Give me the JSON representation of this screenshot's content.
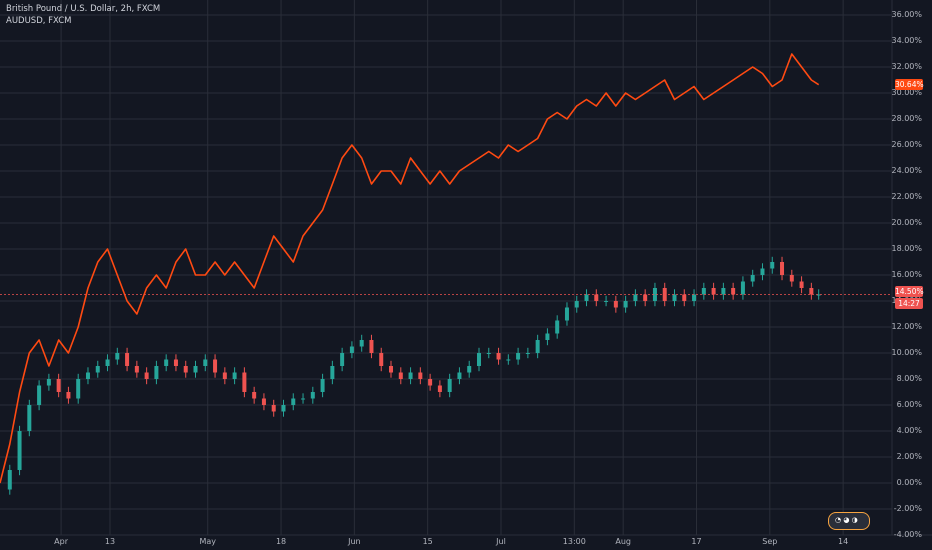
{
  "legend": {
    "line1": "British Pound / U.S. Dollar, 2h, FXCM",
    "line2": "AUDUSD, FXCM"
  },
  "price_tags": {
    "gbpusd": "30.64%",
    "audusd": "14.50%",
    "countdown": "14:27"
  },
  "colors": {
    "background": "#131722",
    "grid": "#2a2e39",
    "gbpusd_line": "#ff4a12",
    "audusd_up": "#26a69a",
    "audusd_down": "#ef5350",
    "axis_text": "#b2b5be"
  },
  "chart_data": {
    "type": "line",
    "y_unit": "percent change",
    "ylim": [
      -4,
      37
    ],
    "ytick_labels": [
      "36.00%",
      "34.00%",
      "32.00%",
      "30.00%",
      "28.00%",
      "26.00%",
      "24.00%",
      "22.00%",
      "20.00%",
      "18.00%",
      "16.00%",
      "14.00%",
      "12.00%",
      "10.00%",
      "8.00%",
      "6.00%",
      "4.00%",
      "2.00%",
      "0.00%",
      "-2.00%",
      "-4.00%"
    ],
    "ytick_values": [
      36,
      34,
      32,
      30,
      28,
      26,
      24,
      22,
      20,
      18,
      16,
      14,
      12,
      10,
      8,
      6,
      4,
      2,
      0,
      -2,
      -4
    ],
    "xtick_labels": [
      "Apr",
      "13",
      "May",
      "18",
      "Jun",
      "15",
      "Jul",
      "13:00",
      "Aug",
      "17",
      "Sep",
      "14"
    ],
    "xtick_positions": [
      2.5,
      4.5,
      8.5,
      11.5,
      14.5,
      17.5,
      20.5,
      23.5,
      25.5,
      28.5,
      31.5,
      34.5
    ],
    "xlim": [
      0,
      36.5
    ],
    "grid": true,
    "series": [
      {
        "name": "British Pound / U.S. Dollar, 2h, FXCM",
        "style": "line",
        "x": [
          0,
          0.4,
          0.8,
          1.2,
          1.6,
          2,
          2.4,
          2.8,
          3.2,
          3.6,
          4,
          4.4,
          4.8,
          5.2,
          5.6,
          6,
          6.4,
          6.8,
          7.2,
          7.6,
          8,
          8.4,
          8.8,
          9.2,
          9.6,
          10,
          10.4,
          10.8,
          11.2,
          11.6,
          12,
          12.4,
          12.8,
          13.2,
          13.6,
          14,
          14.4,
          14.8,
          15.2,
          15.6,
          16,
          16.4,
          16.8,
          17.2,
          17.6,
          18,
          18.4,
          18.8,
          19.2,
          19.6,
          20,
          20.4,
          20.8,
          21.2,
          21.6,
          22,
          22.4,
          22.8,
          23.2,
          23.6,
          24,
          24.4,
          24.8,
          25.2,
          25.6,
          26,
          26.4,
          26.8,
          27.2,
          27.6,
          28,
          28.4,
          28.8,
          29.2,
          29.6,
          30,
          30.4,
          30.8,
          31.2,
          31.6,
          32,
          32.4,
          32.8,
          33.2,
          33.5
        ],
        "values": [
          0,
          3,
          7,
          10,
          11,
          9,
          11,
          10,
          12,
          15,
          17,
          18,
          16,
          14,
          13,
          15,
          16,
          15,
          17,
          18,
          16,
          16,
          17,
          16,
          17,
          16,
          15,
          17,
          19,
          18,
          17,
          19,
          20,
          21,
          23,
          25,
          26,
          25,
          23,
          24,
          24,
          23,
          25,
          24,
          23,
          24,
          23,
          24,
          24.5,
          25,
          25.5,
          25,
          26,
          25.5,
          26,
          26.5,
          28,
          28.5,
          28,
          29,
          29.5,
          29,
          30,
          29,
          30,
          29.5,
          30,
          30.5,
          31,
          29.5,
          30,
          30.5,
          29.5,
          30,
          30.5,
          31,
          31.5,
          32,
          31.5,
          30.5,
          31,
          33,
          32,
          31,
          30.64
        ]
      },
      {
        "name": "AUDUSD, FXCM",
        "style": "candles",
        "x": [
          0,
          0.4,
          0.8,
          1.2,
          1.6,
          2,
          2.4,
          2.8,
          3.2,
          3.6,
          4,
          4.4,
          4.8,
          5.2,
          5.6,
          6,
          6.4,
          6.8,
          7.2,
          7.6,
          8,
          8.4,
          8.8,
          9.2,
          9.6,
          10,
          10.4,
          10.8,
          11.2,
          11.6,
          12,
          12.4,
          12.8,
          13.2,
          13.6,
          14,
          14.4,
          14.8,
          15.2,
          15.6,
          16,
          16.4,
          16.8,
          17.2,
          17.6,
          18,
          18.4,
          18.8,
          19.2,
          19.6,
          20,
          20.4,
          20.8,
          21.2,
          21.6,
          22,
          22.4,
          22.8,
          23.2,
          23.6,
          24,
          24.4,
          24.8,
          25.2,
          25.6,
          26,
          26.4,
          26.8,
          27.2,
          27.6,
          28,
          28.4,
          28.8,
          29.2,
          29.6,
          30,
          30.4,
          30.8,
          31.2,
          31.6,
          32,
          32.4,
          32.8,
          33.2,
          33.5
        ],
        "values": [
          -0.5,
          1,
          4,
          6,
          7.5,
          8,
          7,
          6.5,
          8,
          8.5,
          9,
          9.5,
          10,
          9,
          8.5,
          8,
          9,
          9.5,
          9,
          8.5,
          9,
          9.5,
          8.5,
          8,
          8.5,
          7,
          6.5,
          6,
          5.5,
          6,
          6.5,
          6.5,
          7,
          8,
          9,
          10,
          10.5,
          11,
          10,
          9,
          8.5,
          8,
          8.5,
          8,
          7.5,
          7,
          8,
          8.5,
          9,
          10,
          10,
          9.5,
          9.5,
          10,
          10,
          11,
          11.5,
          12.5,
          13.5,
          14,
          14.5,
          14,
          14,
          13.5,
          14,
          14.5,
          14,
          15,
          14,
          14.5,
          14,
          14.5,
          15,
          14.5,
          15,
          14.5,
          15.5,
          16,
          16.5,
          17,
          16,
          15.5,
          15,
          14.5,
          14.5
        ]
      }
    ]
  }
}
